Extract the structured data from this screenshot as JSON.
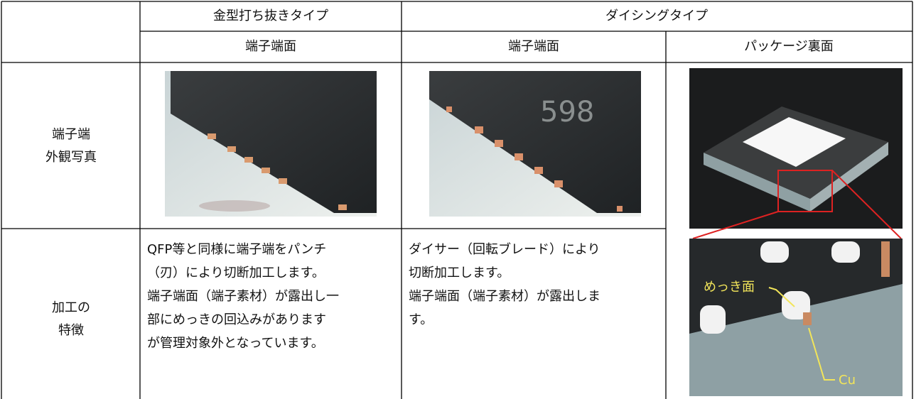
{
  "header": {
    "group_1": "金型打ち抜きタイプ",
    "group_2": "ダイシングタイプ"
  },
  "subheader": [
    "端子端面",
    "端子端面",
    "パッケージ裏面"
  ],
  "rows": [
    {
      "label": [
        "端子端",
        "外観写真"
      ]
    },
    {
      "label": [
        "加工の",
        "特徴"
      ],
      "cells": [
        [
          "QFP等と同様に端子端をパンチ",
          "（刃）により切断加工します。",
          "端子端面（端子素材）が露出し一",
          "部にめっきの回込みがあります",
          "が管理対象外となっています。"
        ],
        [
          "ダイサー（回転ブレード）により",
          "切断加工します。",
          "端子端面（端子素材）が露出しま",
          "す。"
        ]
      ]
    }
  ],
  "annotations": {
    "plating_face": "めっき面",
    "cu": "Cu"
  }
}
